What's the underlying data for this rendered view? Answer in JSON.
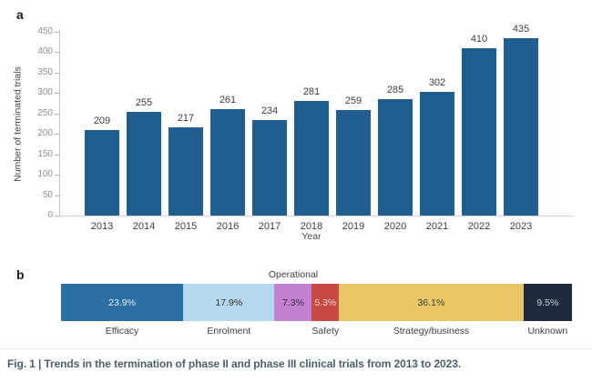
{
  "figure": {
    "caption": "Fig. 1 | Trends in the termination of phase II and phase III clinical trials from 2013 to 2023."
  },
  "panels": {
    "a": "a",
    "b": "b"
  },
  "chart_data": [
    {
      "type": "bar",
      "panel": "a",
      "categories": [
        "2013",
        "2014",
        "2015",
        "2016",
        "2017",
        "2018",
        "2019",
        "2020",
        "2021",
        "2022",
        "2023"
      ],
      "values": [
        209,
        255,
        217,
        261,
        234,
        281,
        259,
        285,
        302,
        410,
        435
      ],
      "title": "",
      "xlabel": "Year",
      "ylabel": "Number of terminated trials",
      "ylim": [
        0,
        450
      ],
      "ytick_step": 50,
      "bar_color": "#205e92",
      "value_labels_shown": true,
      "grid": false,
      "legend": "none"
    },
    {
      "type": "stacked-bar-horizontal",
      "panel": "b",
      "total_pct": 100.0,
      "segments": [
        {
          "label": "Efficacy",
          "value_pct": 23.9,
          "display": "23.9%",
          "color": "#2a70a5",
          "text_color": "#e3ecf3",
          "label_position": "bottom"
        },
        {
          "label": "Enrolment",
          "value_pct": 17.9,
          "display": "17.9%",
          "color": "#b5d8ec",
          "text_color": "#353535",
          "label_position": "bottom"
        },
        {
          "label": "Operational",
          "value_pct": 7.3,
          "display": "7.3%",
          "color": "#c281d1",
          "text_color": "#38253f",
          "label_position": "top"
        },
        {
          "label": "Safety",
          "value_pct": 5.3,
          "display": "5.3%",
          "color": "#c84a45",
          "text_color": "#f2d0cc",
          "label_position": "bottom"
        },
        {
          "label": "Strategy/business",
          "value_pct": 36.1,
          "display": "36.1%",
          "color": "#e9c666",
          "text_color": "#3e3e3e",
          "label_position": "bottom"
        },
        {
          "label": "Unknown",
          "value_pct": 9.5,
          "display": "9.5%",
          "color": "#1d2b3d",
          "text_color": "#c6cdd5",
          "label_position": "bottom"
        }
      ]
    }
  ]
}
